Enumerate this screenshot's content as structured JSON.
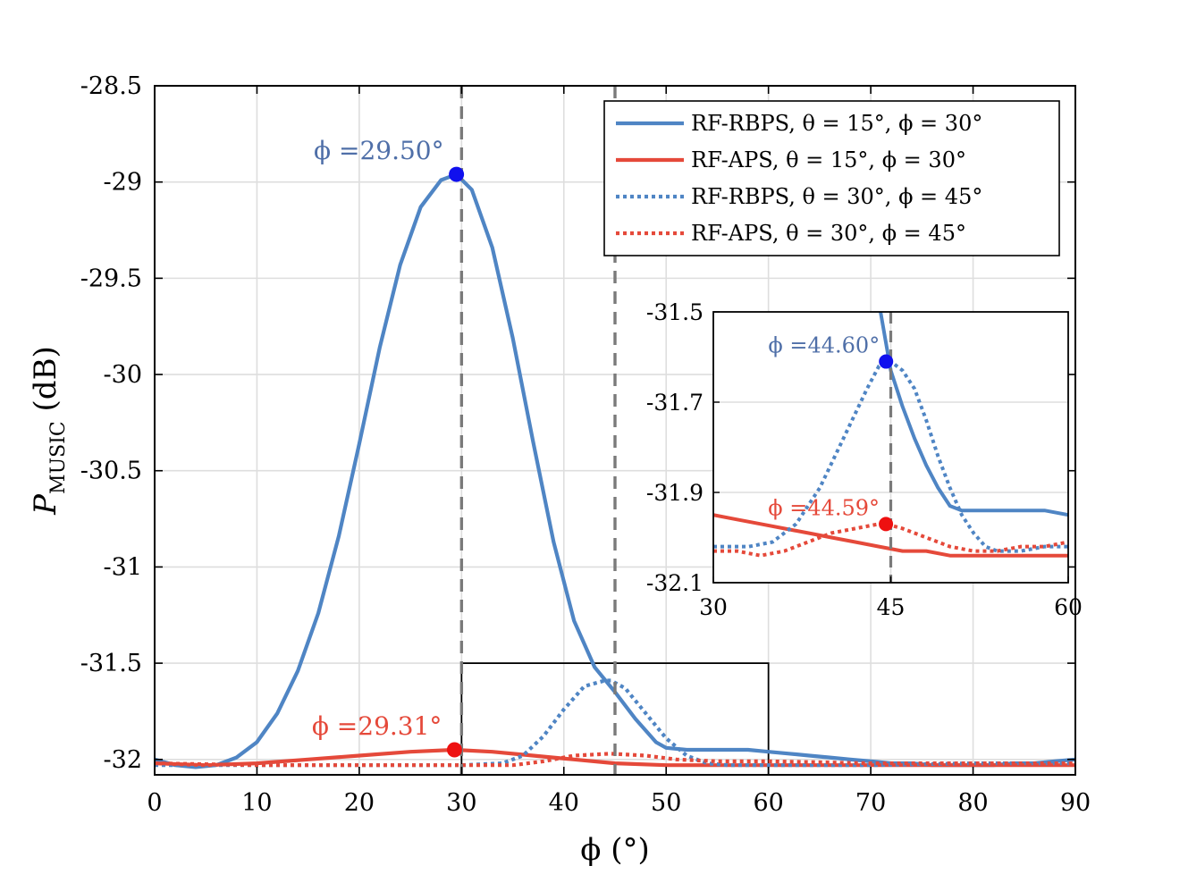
{
  "chart_data": [
    {
      "type": "line",
      "name": "main",
      "title": "",
      "xlabel": "ϕ (°)",
      "ylabel": "P",
      "ylabel_sub": "MUSIC",
      "ylabel_unit": " (dB)",
      "xlim": [
        0,
        90
      ],
      "ylim": [
        -32.08,
        -28.5
      ],
      "xticks": [
        0,
        10,
        20,
        30,
        40,
        50,
        60,
        70,
        80,
        90
      ],
      "xtick_labels": [
        "0",
        "10",
        "20",
        "30",
        "40",
        "50",
        "60",
        "70",
        "80",
        "90"
      ],
      "yticks": [
        -28.5,
        -29,
        -29.5,
        -30,
        -30.5,
        -31,
        -31.5,
        -32
      ],
      "ytick_labels": [
        "-28.5",
        "-29",
        "-29.5",
        "-30",
        "-30.5",
        "-31",
        "-31.5",
        "-32"
      ],
      "grid": true,
      "legend_position": "top-right",
      "series": [
        {
          "name": "RF-RBPS, θ = 15°, ϕ = 30°",
          "color": "#4f85c4",
          "style": "solid",
          "x": [
            0,
            2,
            4,
            6,
            8,
            10,
            12,
            14,
            16,
            18,
            20,
            22,
            24,
            26,
            28,
            29.5,
            31,
            33,
            35,
            37,
            39,
            41,
            43,
            45,
            47,
            49,
            50,
            52,
            54,
            56,
            58,
            60,
            62,
            64,
            66,
            68,
            70,
            72,
            74,
            76,
            78,
            80,
            82,
            84,
            86,
            88,
            90
          ],
          "y": [
            -32.0,
            -32.03,
            -32.04,
            -32.03,
            -31.99,
            -31.91,
            -31.76,
            -31.54,
            -31.24,
            -30.84,
            -30.36,
            -29.86,
            -29.43,
            -29.13,
            -28.99,
            -28.96,
            -29.04,
            -29.34,
            -29.81,
            -30.35,
            -30.87,
            -31.28,
            -31.52,
            -31.65,
            -31.79,
            -31.91,
            -31.94,
            -31.95,
            -31.95,
            -31.95,
            -31.95,
            -31.96,
            -31.97,
            -31.98,
            -31.99,
            -32.0,
            -32.01,
            -32.02,
            -32.02,
            -32.03,
            -32.03,
            -32.03,
            -32.03,
            -32.02,
            -32.02,
            -32.01,
            -32.0
          ]
        },
        {
          "name": "RF-APS, θ = 15°, ϕ = 30°",
          "color": "#e5493a",
          "style": "solid",
          "x": [
            0,
            5,
            10,
            15,
            20,
            25,
            29.31,
            33,
            37,
            41,
            45,
            50,
            55,
            60,
            65,
            70,
            75,
            80,
            85,
            90
          ],
          "y": [
            -32.02,
            -32.03,
            -32.02,
            -32.0,
            -31.98,
            -31.96,
            -31.95,
            -31.96,
            -31.98,
            -32.0,
            -32.02,
            -32.03,
            -32.03,
            -32.03,
            -32.03,
            -32.03,
            -32.03,
            -32.03,
            -32.03,
            -32.03
          ]
        },
        {
          "name": "RF-RBPS, θ = 30°, ϕ = 45°",
          "color": "#4f85c4",
          "style": "dotted",
          "x": [
            0,
            10,
            20,
            30,
            34,
            36,
            38,
            40,
            42,
            44,
            44.6,
            46,
            48,
            50,
            52,
            54,
            56,
            60,
            70,
            80,
            90
          ],
          "y": [
            -32.03,
            -32.03,
            -32.03,
            -32.03,
            -32.02,
            -31.98,
            -31.88,
            -31.74,
            -31.62,
            -31.59,
            -31.59,
            -31.63,
            -31.76,
            -31.89,
            -31.98,
            -32.02,
            -32.03,
            -32.03,
            -32.03,
            -32.02,
            -32.02
          ]
        },
        {
          "name": "RF-APS, θ = 30°, ϕ = 45°",
          "color": "#e5493a",
          "style": "dotted",
          "x": [
            0,
            10,
            20,
            30,
            35,
            38,
            41,
            44.59,
            48,
            51,
            55,
            60,
            70,
            80,
            90
          ],
          "y": [
            -32.02,
            -32.03,
            -32.03,
            -32.03,
            -32.03,
            -32.01,
            -31.98,
            -31.97,
            -31.98,
            -32.0,
            -32.01,
            -32.01,
            -32.02,
            -32.02,
            -32.02
          ]
        }
      ],
      "vlines": [
        30,
        45
      ],
      "zoom_box": {
        "x": [
          30,
          60
        ],
        "y": [
          -32.08,
          -31.5
        ]
      },
      "annotations": [
        {
          "label": "ϕ =29.50°",
          "x": 29.5,
          "y": -28.96,
          "color": "#4f6fa8",
          "marker": "#1010ee"
        },
        {
          "label": "ϕ =29.31°",
          "x": 29.31,
          "y": -31.95,
          "color": "#e5493a",
          "marker": "#ee1010"
        }
      ]
    },
    {
      "type": "line",
      "name": "inset",
      "xlim": [
        30,
        60
      ],
      "ylim": [
        -32.1,
        -31.5
      ],
      "xticks": [
        30,
        45,
        60
      ],
      "xtick_labels": [
        "30",
        "45",
        "60"
      ],
      "yticks": [
        -31.5,
        -31.7,
        -31.9,
        -32.1
      ],
      "ytick_labels": [
        "-31.5",
        "-31.7",
        "-31.9",
        "-32.1"
      ],
      "grid": true,
      "series": [
        {
          "name": "RF-RBPS, θ = 15°, ϕ = 30°",
          "color": "#4f85c4",
          "style": "solid",
          "x": [
            44,
            45,
            46,
            47,
            48,
            49,
            50,
            51,
            52,
            53,
            54,
            56,
            58,
            60
          ],
          "y": [
            -31.48,
            -31.63,
            -31.71,
            -31.78,
            -31.84,
            -31.89,
            -31.93,
            -31.94,
            -31.94,
            -31.94,
            -31.94,
            -31.94,
            -31.94,
            -31.95
          ]
        },
        {
          "name": "RF-APS, θ = 15°, ϕ = 30°",
          "color": "#e5493a",
          "style": "solid",
          "x": [
            30,
            32,
            34,
            36,
            38,
            40,
            42,
            44,
            46,
            48,
            50,
            52,
            54,
            56,
            58,
            60
          ],
          "y": [
            -31.95,
            -31.96,
            -31.97,
            -31.98,
            -31.99,
            -32.0,
            -32.01,
            -32.02,
            -32.03,
            -32.03,
            -32.04,
            -32.04,
            -32.04,
            -32.04,
            -32.04,
            -32.04
          ]
        },
        {
          "name": "RF-RBPS, θ = 30°, ϕ = 45°",
          "color": "#4f85c4",
          "style": "dotted",
          "x": [
            30,
            33,
            35,
            37,
            39,
            41,
            43,
            44,
            44.6,
            45,
            46,
            47,
            48,
            49,
            50,
            51,
            52,
            53,
            54,
            56,
            58,
            60
          ],
          "y": [
            -32.02,
            -32.02,
            -32.01,
            -31.97,
            -31.89,
            -31.78,
            -31.67,
            -31.62,
            -31.61,
            -31.61,
            -31.63,
            -31.67,
            -31.74,
            -31.82,
            -31.89,
            -31.95,
            -31.99,
            -32.02,
            -32.03,
            -32.03,
            -32.02,
            -32.02
          ]
        },
        {
          "name": "RF-APS, θ = 30°, ϕ = 45°",
          "color": "#e5493a",
          "style": "dotted",
          "x": [
            30,
            32,
            34,
            36,
            38,
            40,
            42,
            44,
            44.59,
            46,
            48,
            50,
            52,
            54,
            56,
            58,
            60
          ],
          "y": [
            -32.03,
            -32.03,
            -32.04,
            -32.03,
            -32.01,
            -31.99,
            -31.98,
            -31.97,
            -31.97,
            -31.98,
            -32.0,
            -32.02,
            -32.03,
            -32.03,
            -32.02,
            -32.02,
            -32.01
          ]
        }
      ],
      "vlines": [
        45
      ],
      "annotations": [
        {
          "label": "ϕ =44.60°",
          "x": 44.6,
          "y": -31.61,
          "color": "#4f6fa8",
          "marker": "#1010ee"
        },
        {
          "label": "ϕ =44.59°",
          "x": 44.59,
          "y": -31.97,
          "color": "#e5493a",
          "marker": "#ee1010"
        }
      ]
    }
  ]
}
